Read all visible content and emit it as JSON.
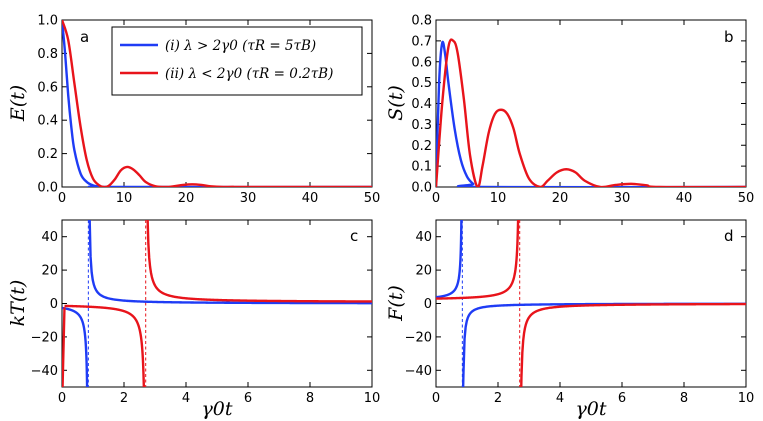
{
  "chart_data": [
    {
      "id": "a",
      "type": "line",
      "panel_label": "a",
      "xlabel": "",
      "ylabel": "E(t)",
      "xlim": [
        0,
        50
      ],
      "ylim": [
        0,
        1.0
      ],
      "xticks": [
        "0",
        "10",
        "20",
        "30",
        "40",
        "50"
      ],
      "yticks": [
        "0.0",
        "0.2",
        "0.4",
        "0.6",
        "0.8",
        "1.0"
      ],
      "legend_position": "top-center",
      "series": [
        {
          "name": "(i) λ > 2γ₀ (τ_R = 5τ_B)",
          "color": "#1f3cf5",
          "x": [
            0,
            0.5,
            1,
            1.5,
            2,
            3,
            4,
            5,
            6,
            8,
            50
          ],
          "y": [
            1.0,
            0.8,
            0.55,
            0.36,
            0.22,
            0.08,
            0.03,
            0.01,
            0.003,
            0,
            0
          ]
        },
        {
          "name": "(ii) λ < 2γ₀ (τ_R = 0.2τ_B)",
          "color": "#e8141b",
          "x": [
            0,
            1,
            2,
            3,
            4,
            5,
            6,
            6.7,
            7.5,
            8.5,
            9.5,
            10.5,
            11.5,
            12.5,
            13.5,
            15,
            16.8,
            18,
            19.5,
            21,
            22.5,
            24,
            26,
            27.5,
            30,
            50
          ],
          "y": [
            1.0,
            0.88,
            0.62,
            0.36,
            0.16,
            0.05,
            0.01,
            0,
            0.006,
            0.045,
            0.1,
            0.12,
            0.105,
            0.07,
            0.03,
            0.005,
            0,
            0.004,
            0.012,
            0.016,
            0.012,
            0.004,
            0,
            0.001,
            0,
            0
          ]
        }
      ]
    },
    {
      "id": "b",
      "type": "line",
      "panel_label": "b",
      "xlabel": "",
      "ylabel": "S(t)",
      "xlim": [
        0,
        50
      ],
      "ylim": [
        0,
        0.8
      ],
      "xticks": [
        "0",
        "10",
        "20",
        "30",
        "40",
        "50"
      ],
      "yticks": [
        "0.0",
        "0.1",
        "0.2",
        "0.3",
        "0.4",
        "0.5",
        "0.6",
        "0.7",
        "0.8"
      ],
      "series": [
        {
          "name": "(i)",
          "color": "#1f3cf5",
          "x": [
            0,
            0.5,
            1,
            1.5,
            2,
            3,
            4,
            5,
            6,
            7,
            50
          ],
          "y": [
            0,
            0.5,
            0.69,
            0.63,
            0.5,
            0.28,
            0.13,
            0.05,
            0.015,
            0,
            0
          ]
        },
        {
          "name": "(ii)",
          "color": "#e8141b",
          "x": [
            0,
            1,
            2,
            2.8,
            3.5,
            4.5,
            5.5,
            6.7,
            7.5,
            8.5,
            9.5,
            10.5,
            11.5,
            12.5,
            13.5,
            15,
            16.8,
            18,
            19.5,
            21,
            22.5,
            24,
            26.5,
            29,
            31.5,
            34,
            36,
            50
          ],
          "y": [
            0,
            0.4,
            0.67,
            0.7,
            0.64,
            0.42,
            0.15,
            0,
            0.1,
            0.26,
            0.35,
            0.37,
            0.35,
            0.28,
            0.16,
            0.04,
            0,
            0.03,
            0.07,
            0.085,
            0.07,
            0.03,
            0,
            0.01,
            0.015,
            0.008,
            0,
            0
          ]
        }
      ]
    },
    {
      "id": "c",
      "type": "line",
      "panel_label": "c",
      "xlabel": "γ0t",
      "ylabel": "kT(t)",
      "xlim": [
        0,
        10
      ],
      "ylim": [
        -50,
        50
      ],
      "xticks": [
        "0",
        "2",
        "4",
        "6",
        "8",
        "10"
      ],
      "yticks": [
        "−40",
        "−20",
        "0",
        "20",
        "40"
      ],
      "asymptotes": [
        {
          "x": 0.85,
          "color": "#1f3cf5"
        },
        {
          "x": 2.7,
          "color": "#e8141b"
        }
      ],
      "series": [
        {
          "name": "(i)",
          "color": "#1f3cf5",
          "pole": 0.85,
          "A": 2.0,
          "before": -0.3,
          "after": 0.0,
          "x_end": 10
        },
        {
          "name": "(ii)",
          "color": "#e8141b",
          "pole": 2.7,
          "A": 3.0,
          "before": -0.3,
          "after": 0.8,
          "x_end": 10,
          "left_pole": 0
        }
      ]
    },
    {
      "id": "d",
      "type": "line",
      "panel_label": "d",
      "xlabel": "γ0t",
      "ylabel": "F(t)",
      "xlim": [
        0,
        10
      ],
      "ylim": [
        -50,
        50
      ],
      "xticks": [
        "0",
        "2",
        "4",
        "6",
        "8",
        "10"
      ],
      "yticks": [
        "−40",
        "−20",
        "0",
        "20",
        "40"
      ],
      "asymptotes": [
        {
          "x": 0.85,
          "color": "#1f3cf5"
        },
        {
          "x": 2.7,
          "color": "#e8141b"
        }
      ],
      "series": [
        {
          "name": "(i)",
          "color": "#1f3cf5",
          "pole": 0.85,
          "A": -1.5,
          "before": 2.0,
          "after": 0.0,
          "x_end": 10
        },
        {
          "name": "(ii)",
          "color": "#e8141b",
          "pole": 2.7,
          "A": -2.5,
          "before": 2.0,
          "after": 0.0,
          "x_end": 10
        }
      ]
    }
  ],
  "legend": {
    "line1": "(i) λ > 2γ0 (τR = 5τB)",
    "line2": "(ii) λ < 2γ0 (τR = 0.2τB)",
    "color1": "#1f3cf5",
    "color2": "#e8141b"
  }
}
